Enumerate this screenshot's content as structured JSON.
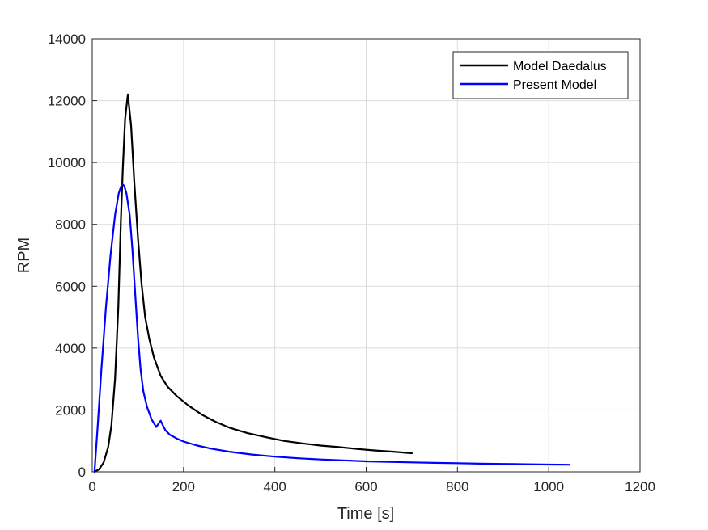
{
  "chart_data": {
    "type": "line",
    "title": "",
    "xlabel": "Time [s]",
    "ylabel": "RPM",
    "xlim": [
      0,
      1200
    ],
    "ylim": [
      0,
      14000
    ],
    "xticks": [
      0,
      200,
      400,
      600,
      800,
      1000,
      1200
    ],
    "yticks": [
      0,
      2000,
      4000,
      6000,
      8000,
      10000,
      12000,
      14000
    ],
    "grid": true,
    "legend_position": "top-right",
    "series": [
      {
        "name": "Model Daedalus",
        "color": "#000000",
        "x": [
          5,
          15,
          25,
          35,
          42,
          50,
          57,
          63,
          67,
          72,
          78,
          85,
          92,
          100,
          108,
          116,
          125,
          135,
          150,
          165,
          185,
          210,
          240,
          270,
          300,
          340,
          380,
          420,
          460,
          500,
          540,
          580,
          620,
          660,
          700
        ],
        "y": [
          0,
          80,
          300,
          800,
          1500,
          3000,
          5300,
          8200,
          9800,
          11400,
          12200,
          11200,
          9400,
          7600,
          6100,
          5000,
          4300,
          3700,
          3100,
          2750,
          2450,
          2150,
          1850,
          1620,
          1430,
          1250,
          1120,
          1000,
          920,
          850,
          800,
          740,
          690,
          650,
          600
        ]
      },
      {
        "name": "Present Model",
        "color": "#0000ff",
        "x": [
          5,
          12,
          20,
          30,
          40,
          50,
          58,
          65,
          70,
          75,
          82,
          88,
          94,
          100,
          106,
          112,
          120,
          130,
          140,
          145,
          150,
          155,
          160,
          170,
          185,
          200,
          230,
          260,
          300,
          350,
          400,
          450,
          500,
          550,
          600,
          650,
          700,
          750,
          800,
          850,
          900,
          950,
          1000,
          1045
        ],
        "y": [
          0,
          1500,
          3300,
          5300,
          7000,
          8300,
          9000,
          9300,
          9250,
          9000,
          8300,
          7200,
          5800,
          4400,
          3300,
          2600,
          2100,
          1700,
          1450,
          1550,
          1650,
          1500,
          1350,
          1200,
          1080,
          980,
          850,
          750,
          650,
          560,
          490,
          440,
          400,
          370,
          340,
          320,
          305,
          290,
          280,
          265,
          255,
          245,
          235,
          230
        ]
      }
    ]
  }
}
